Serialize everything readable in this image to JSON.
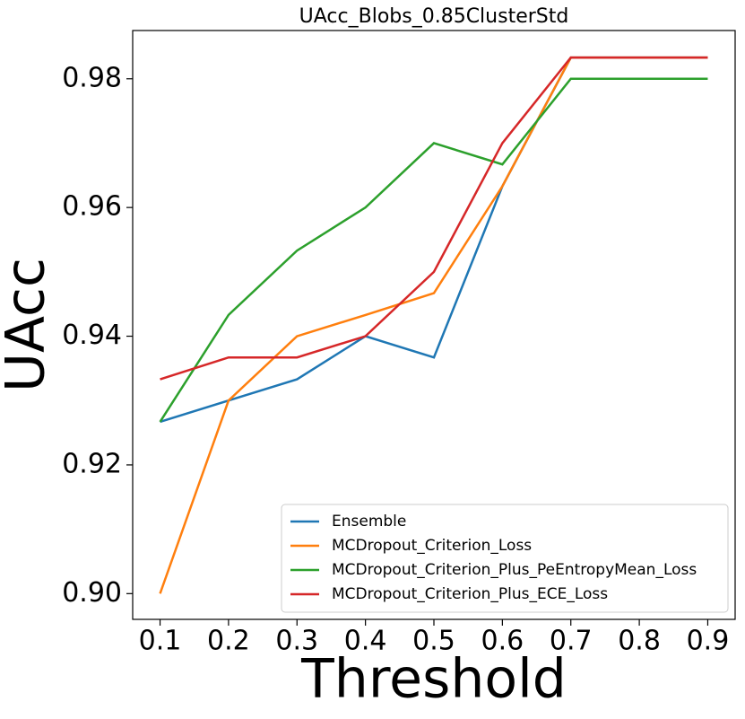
{
  "chart_data": {
    "type": "line",
    "title": "UAcc_Blobs_0.85ClusterStd",
    "x_label": "Threshold",
    "y_label": "UAcc",
    "x": [
      0.1,
      0.2,
      0.3,
      0.4,
      0.5,
      0.6,
      0.7,
      0.8,
      0.9
    ],
    "series": [
      {
        "name": "Ensemble",
        "color": "#1f77b4",
        "values": [
          0.9267,
          0.93,
          0.9333,
          0.94,
          0.9367,
          0.9633,
          0.9833,
          0.9833,
          0.9833
        ]
      },
      {
        "name": "MCDropout_Criterion_Loss",
        "color": "#ff7f0e",
        "values": [
          0.9,
          0.93,
          0.94,
          0.9433,
          0.9467,
          0.9633,
          0.9833,
          0.9833,
          0.9833
        ]
      },
      {
        "name": "MCDropout_Criterion_Plus_PeEntropyMean_Loss",
        "color": "#2ca02c",
        "values": [
          0.9267,
          0.9433,
          0.9533,
          0.96,
          0.97,
          0.9667,
          0.98,
          0.98,
          0.98
        ]
      },
      {
        "name": "MCDropout_Criterion_Plus_ECE_Loss",
        "color": "#d62728",
        "values": [
          0.9333,
          0.9367,
          0.9367,
          0.94,
          0.95,
          0.97,
          0.9833,
          0.9833,
          0.9833
        ]
      }
    ],
    "xlim": [
      0.06,
      0.94
    ],
    "xticks": [
      0.1,
      0.2,
      0.3,
      0.4,
      0.5,
      0.6,
      0.7,
      0.8,
      0.9
    ],
    "ylim": [
      0.896,
      0.9875
    ],
    "yticks": [
      {
        "value": 0.9,
        "label": "0.90"
      },
      0.92,
      0.94,
      0.96,
      0.98
    ],
    "grid": false,
    "legend": "lower right"
  }
}
